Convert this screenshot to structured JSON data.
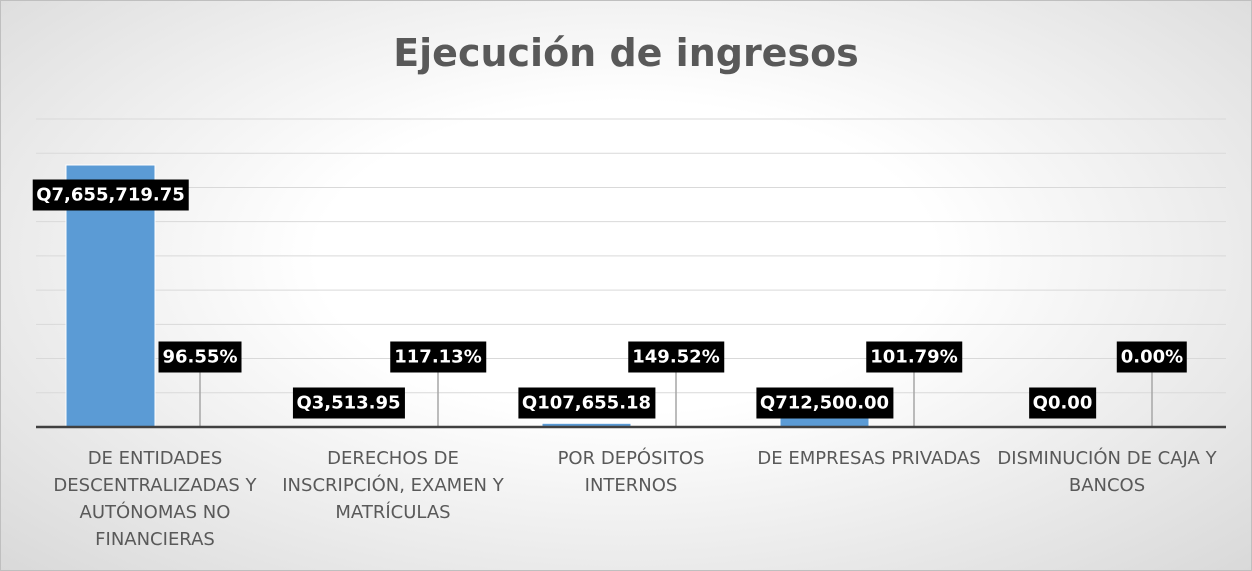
{
  "chart_data": {
    "type": "bar",
    "title": "Ejecución de ingresos",
    "categories": [
      "DE ENTIDADES DESCENTRALIZADAS Y AUTÓNOMAS NO FINANCIERAS",
      "DERECHOS DE INSCRIPCIÓN, EXAMEN Y MATRÍCULAS",
      "POR DEPÓSITOS INTERNOS",
      "DE EMPRESAS PRIVADAS",
      "DISMINUCIÓN DE CAJA Y BANCOS"
    ],
    "series": [
      {
        "color": "#5b9bd5",
        "values": [
          7655719.75,
          3513.95,
          107655.18,
          712500,
          0
        ],
        "value_labels": [
          "Q7,655,719.75",
          "Q3,513.95",
          "Q107,655.18",
          "Q712,500.00",
          "Q0.00"
        ]
      },
      {
        "color": "#ed7d31",
        "values": [
          96.55,
          117.13,
          149.52,
          101.79,
          0
        ],
        "value_labels": [
          "96.55%",
          "117.13%",
          "149.52%",
          "101.79%",
          "0.00%"
        ]
      }
    ],
    "ylim": [
      0,
      9000000
    ],
    "yticks": [
      0,
      1000000,
      2000000,
      3000000,
      4000000,
      5000000,
      6000000,
      7000000,
      8000000,
      9000000
    ],
    "grid": true
  }
}
